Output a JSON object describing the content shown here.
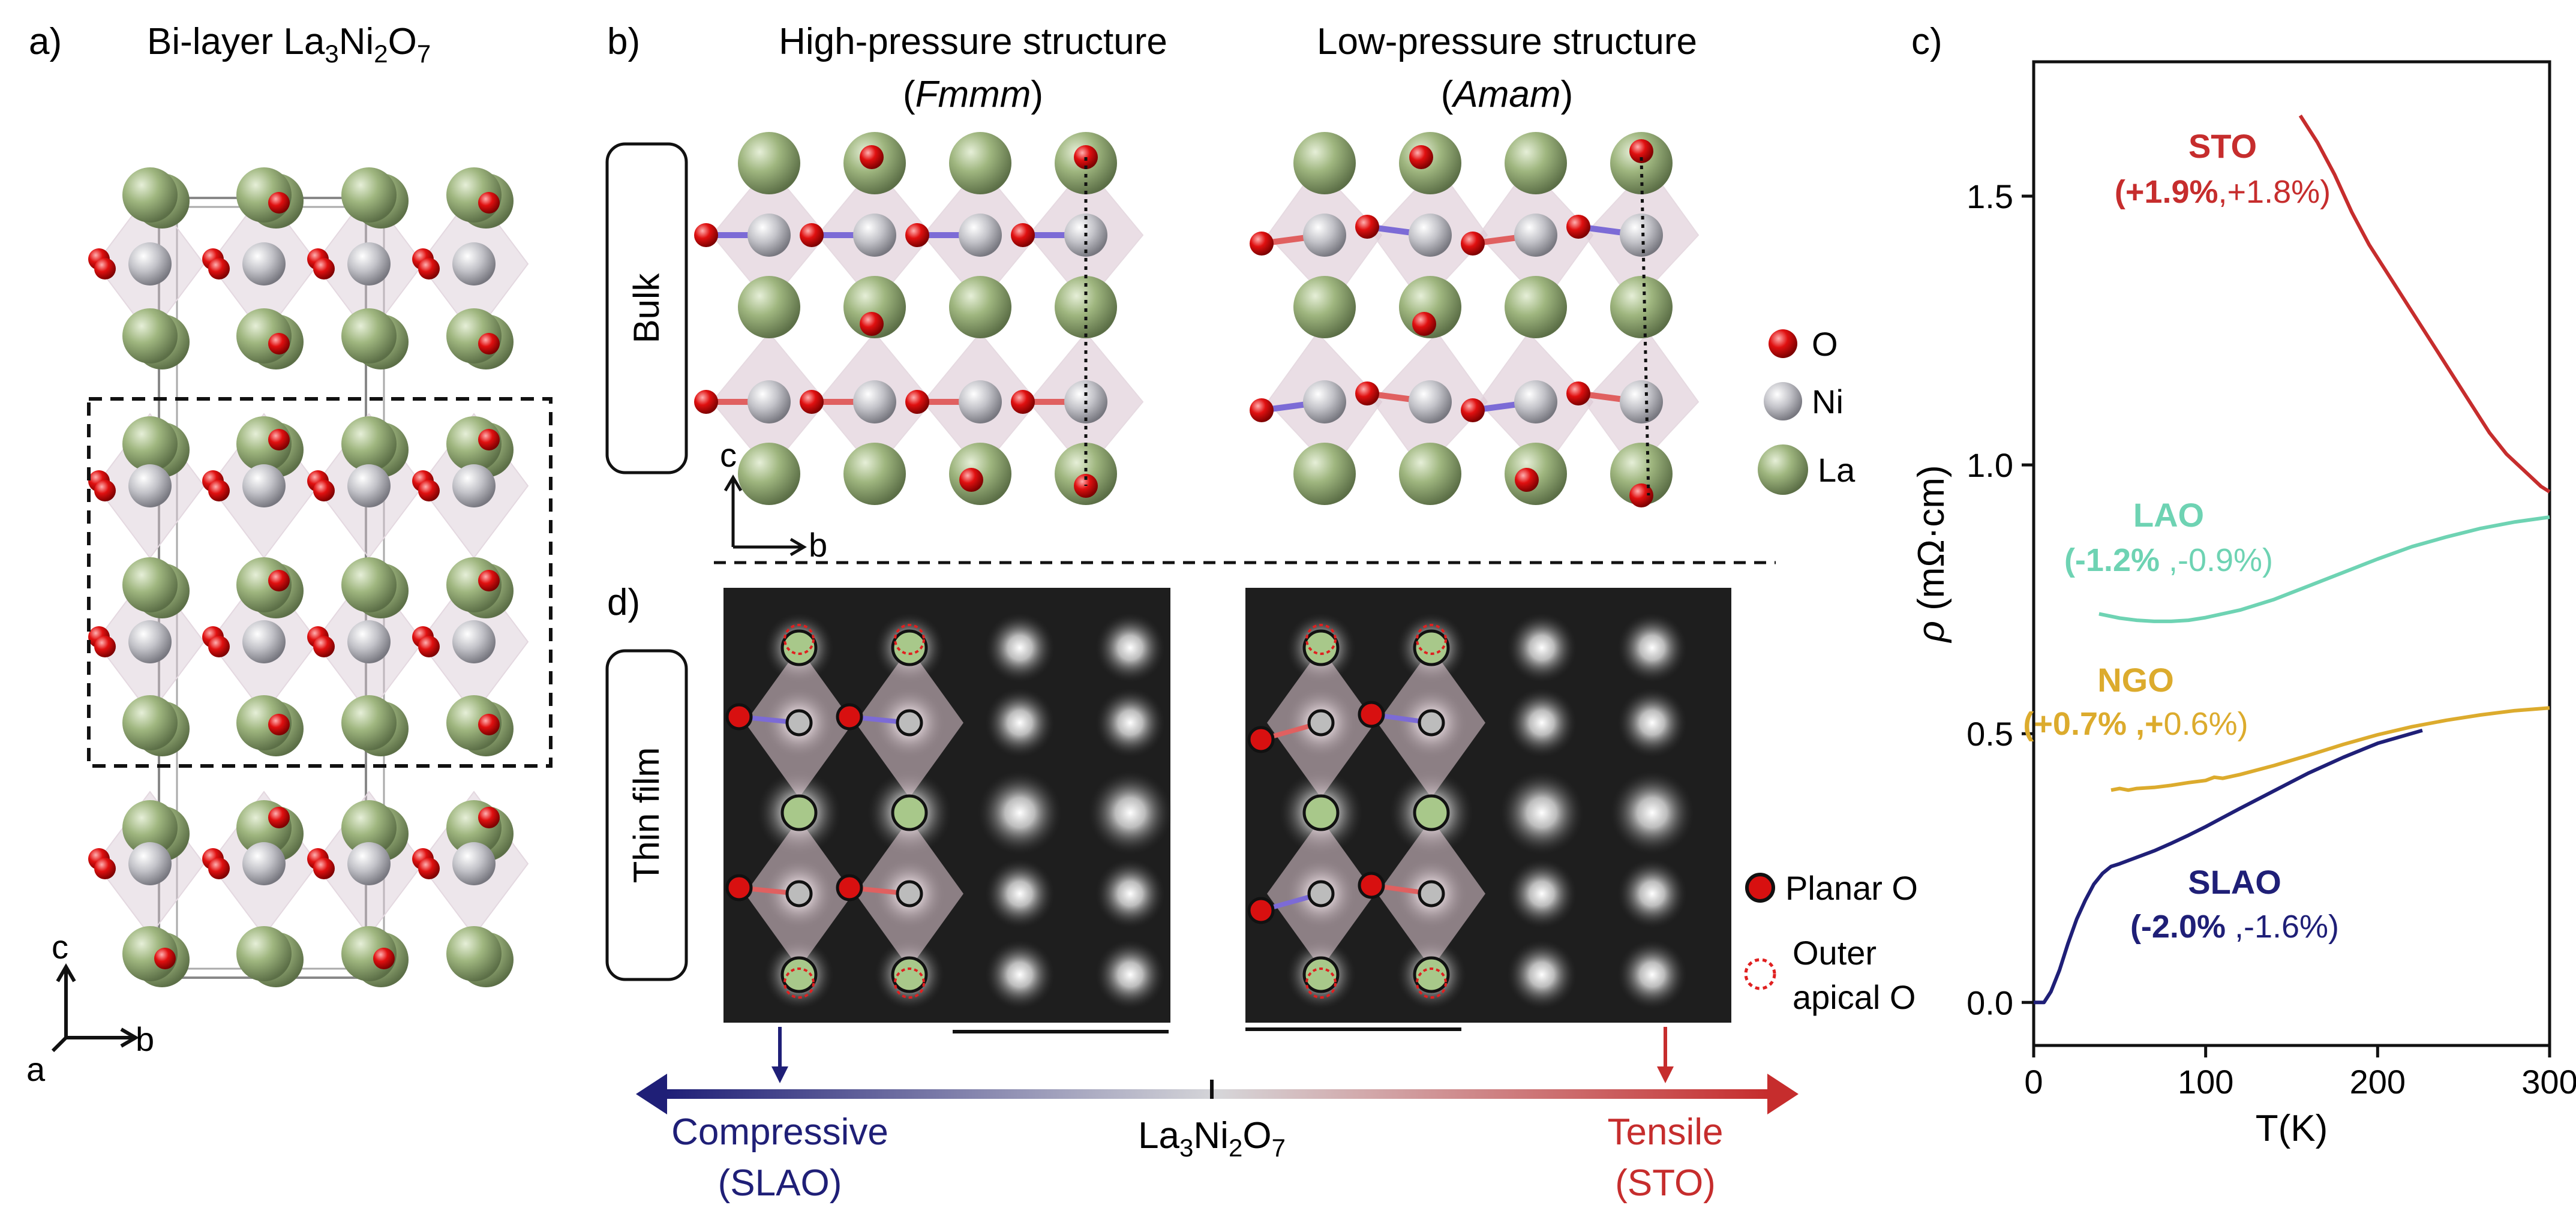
{
  "panel_a": {
    "label": "a)",
    "title_prefix": "Bi-layer La",
    "title_sub1": "3",
    "title_mid": "Ni",
    "title_sub2": "2",
    "title_mid2": "O",
    "title_sub3": "7",
    "axis_c": "c",
    "axis_a": "a",
    "axis_b": "b"
  },
  "panel_b": {
    "label": "b)",
    "row_label": "Bulk",
    "high_title": "High-pressure structure",
    "high_group": "Fmmm",
    "low_title": "Low-pressure structure",
    "low_group": "Amam",
    "axis_c": "c",
    "axis_b": "b",
    "legend": [
      {
        "label": "O",
        "color": "#d81010"
      },
      {
        "label": "Ni",
        "color": "#b7b7bd"
      },
      {
        "label": "La",
        "color": "#94ad73"
      }
    ]
  },
  "panel_d": {
    "label": "d)",
    "row_label": "Thin film",
    "legend_planar": "Planar O",
    "legend_outer_1": "Outer",
    "legend_outer_2": "apical O"
  },
  "strain_scale": {
    "compressive": "Compressive",
    "compressive_sub": "(SLAO)",
    "center_prefix": "La",
    "center_sub1": "3",
    "center_mid": "Ni",
    "center_sub2": "2",
    "center_mid2": "O",
    "center_sub3": "7",
    "tensile": "Tensile",
    "tensile_sub": "(STO)",
    "compressive_color": "#1f1f77",
    "tensile_color": "#c62d2d"
  },
  "chart_data": {
    "panel_label": "c)",
    "type": "line",
    "xlabel": "T(K)",
    "ylabel_symbol": "ρ",
    "ylabel_unit": "(mΩ·cm)",
    "xlim": [
      0,
      300
    ],
    "ylim": [
      -0.08,
      1.75
    ],
    "xticks": [
      "0",
      "100",
      "200",
      "300"
    ],
    "xtick_values": [
      0,
      100,
      200,
      300
    ],
    "yticks": [
      "0.0",
      "0.5",
      "1.0",
      "1.5"
    ],
    "ytick_values": [
      0.0,
      0.5,
      1.0,
      1.5
    ],
    "series": [
      {
        "name": "STO",
        "strain_bold": "(+1.9%",
        "strain_rest": ",+1.8%)",
        "color": "#c62d2d",
        "x": [
          155,
          165,
          175,
          185,
          195,
          205,
          215,
          225,
          235,
          245,
          255,
          265,
          275,
          285,
          295,
          300
        ],
        "y": [
          1.65,
          1.6,
          1.54,
          1.47,
          1.41,
          1.36,
          1.31,
          1.26,
          1.21,
          1.16,
          1.11,
          1.06,
          1.02,
          0.99,
          0.96,
          0.95
        ]
      },
      {
        "name": "LAO",
        "strain_bold": "(-1.2%",
        "strain_rest": " ,-0.9%)",
        "color": "#6ed3b3",
        "x": [
          38,
          50,
          60,
          70,
          80,
          90,
          100,
          120,
          140,
          160,
          180,
          200,
          220,
          240,
          260,
          280,
          300
        ],
        "y": [
          0.723,
          0.715,
          0.711,
          0.709,
          0.709,
          0.711,
          0.716,
          0.73,
          0.75,
          0.775,
          0.8,
          0.825,
          0.848,
          0.866,
          0.882,
          0.894,
          0.903
        ]
      },
      {
        "name": "NGO",
        "strain_bold": "(+0.7% ,+",
        "strain_rest": "0.6%)",
        "color": "#dcab2d",
        "x": [
          45,
          50,
          55,
          60,
          70,
          80,
          90,
          100,
          105,
          110,
          120,
          140,
          160,
          180,
          200,
          220,
          240,
          260,
          280,
          300
        ],
        "y": [
          0.395,
          0.398,
          0.395,
          0.398,
          0.4,
          0.404,
          0.409,
          0.413,
          0.419,
          0.417,
          0.424,
          0.441,
          0.46,
          0.48,
          0.498,
          0.513,
          0.525,
          0.535,
          0.543,
          0.548
        ]
      },
      {
        "name": "SLAO",
        "strain_bold": "(-2.0%",
        "strain_rest": " ,-1.6%)",
        "color": "#1f1f77",
        "x": [
          0,
          3,
          6,
          10,
          15,
          20,
          25,
          30,
          35,
          40,
          45,
          50,
          60,
          70,
          80,
          90,
          100,
          110,
          120,
          140,
          160,
          180,
          200,
          226
        ],
        "y": [
          0.0,
          0.0,
          0.0,
          0.02,
          0.06,
          0.11,
          0.155,
          0.19,
          0.22,
          0.24,
          0.253,
          0.258,
          0.27,
          0.282,
          0.296,
          0.311,
          0.327,
          0.344,
          0.361,
          0.394,
          0.427,
          0.456,
          0.482,
          0.506
        ]
      }
    ]
  }
}
